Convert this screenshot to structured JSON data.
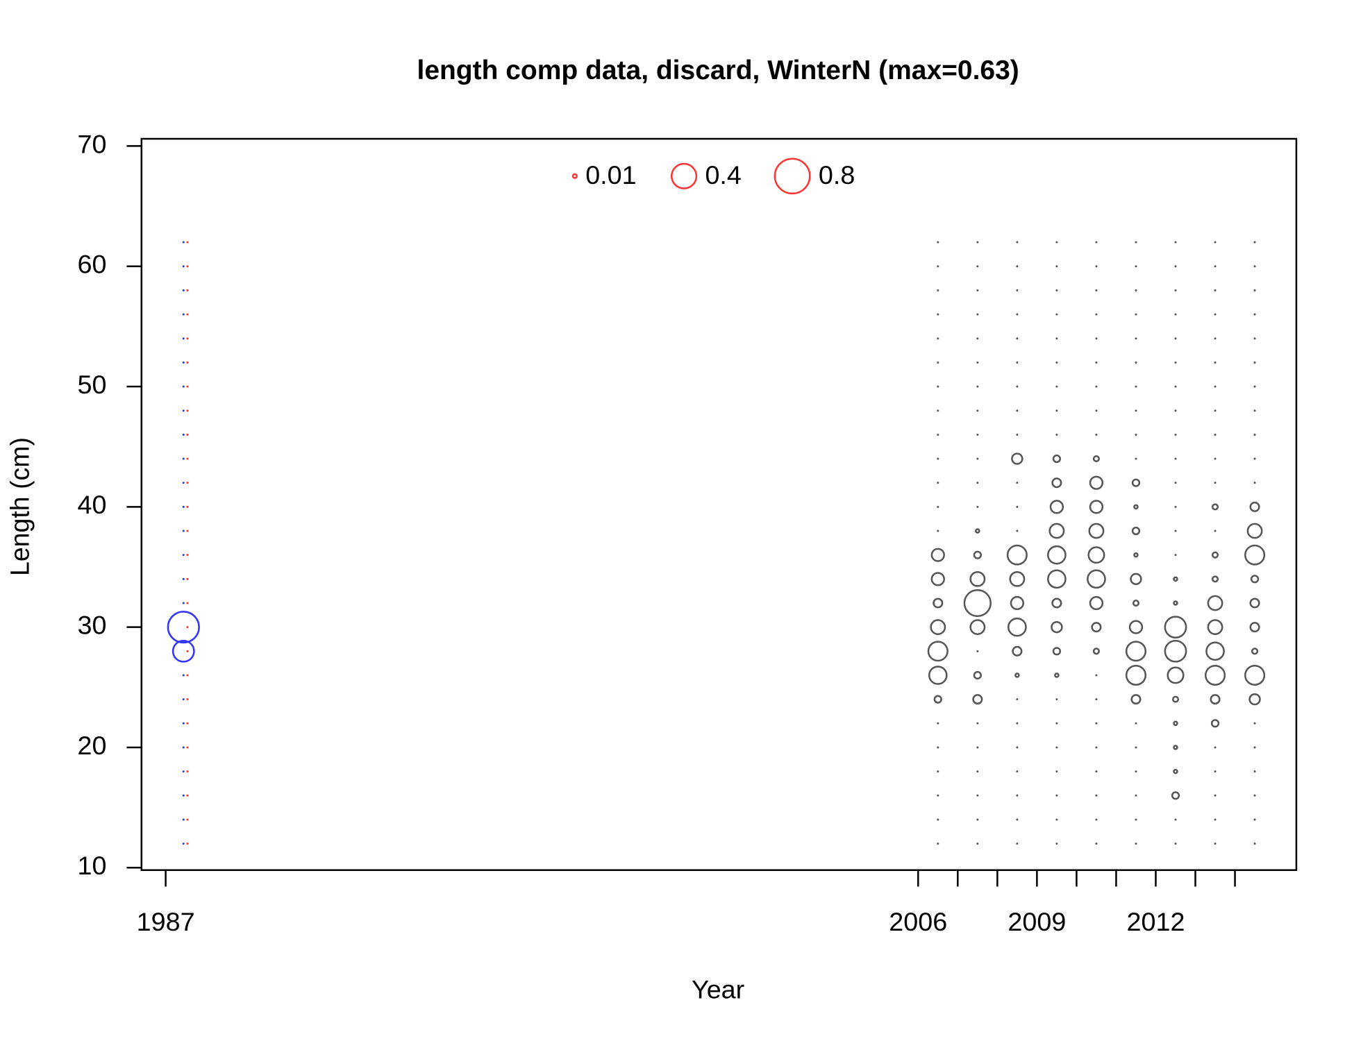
{
  "chart_data": {
    "type": "bubble",
    "title": "length comp data, discard, WinterN (max=0.63)",
    "x_label": "Year",
    "y_label": "Length (cm)",
    "xlim": [
      1986.39,
      2015.55
    ],
    "ylim": [
      9.8,
      70.6
    ],
    "xticks": [
      1987,
      2006,
      {
        "value": 2007,
        "label": null
      },
      {
        "value": 2008,
        "label": null
      },
      2009,
      {
        "value": 2010,
        "label": null
      },
      {
        "value": 2011,
        "label": null
      },
      2012,
      {
        "value": 2013,
        "label": null
      },
      {
        "value": 2014,
        "label": null
      }
    ],
    "yticks": [
      10,
      20,
      30,
      40,
      50,
      60,
      70
    ],
    "size_legend": {
      "values": [
        0.01,
        0.4,
        0.8
      ],
      "color": "#ff3333"
    },
    "y": [
      12,
      14,
      16,
      18,
      20,
      22,
      24,
      26,
      28,
      30,
      32,
      34,
      36,
      38,
      40,
      42,
      44,
      46,
      48,
      50,
      52,
      54,
      56,
      58,
      60,
      62
    ],
    "columns": [
      {
        "x": 1987.45,
        "color": "#3333ff",
        "values": [
          0,
          0,
          0,
          0,
          0,
          0,
          0,
          0,
          0.29,
          0.63,
          0,
          0,
          0,
          0,
          0,
          0,
          0,
          0,
          0,
          0,
          0,
          0,
          0,
          0,
          0,
          0
        ]
      },
      {
        "x": 1987.55,
        "color": "#ff3333",
        "values": [
          0,
          0,
          0,
          0,
          0,
          0,
          0,
          0,
          0,
          0,
          0,
          0,
          0,
          0,
          0,
          0,
          0,
          0,
          0,
          0,
          0,
          0,
          0,
          0,
          0,
          0
        ]
      },
      {
        "x": 2006.5,
        "color": "#555555",
        "values": [
          0,
          0,
          0,
          0,
          0,
          0,
          0.03,
          0.2,
          0.24,
          0.13,
          0.05,
          0.1,
          0.1,
          0,
          0,
          0,
          0,
          0,
          0,
          0,
          0,
          0,
          0,
          0,
          0,
          0
        ]
      },
      {
        "x": 2007.5,
        "color": "#555555",
        "values": [
          0,
          0,
          0,
          0,
          0,
          0,
          0.05,
          0.03,
          0,
          0.13,
          0.45,
          0.13,
          0.03,
          0.008,
          0,
          0,
          0,
          0,
          0,
          0,
          0,
          0,
          0,
          0,
          0,
          0
        ]
      },
      {
        "x": 2008.5,
        "color": "#555555",
        "values": [
          0,
          0,
          0,
          0,
          0,
          0,
          0,
          0.008,
          0.05,
          0.2,
          0.1,
          0.13,
          0.24,
          0,
          0,
          0,
          0.07,
          0,
          0,
          0,
          0,
          0,
          0,
          0,
          0,
          0
        ]
      },
      {
        "x": 2009.5,
        "color": "#555555",
        "values": [
          0,
          0,
          0,
          0,
          0,
          0,
          0,
          0.008,
          0.03,
          0.07,
          0.05,
          0.2,
          0.2,
          0.13,
          0.1,
          0.05,
          0.03,
          0,
          0,
          0,
          0,
          0,
          0,
          0,
          0,
          0
        ]
      },
      {
        "x": 2010.5,
        "color": "#555555",
        "values": [
          0,
          0,
          0,
          0,
          0,
          0,
          0,
          0,
          0.018,
          0.05,
          0.1,
          0.2,
          0.16,
          0.13,
          0.1,
          0.1,
          0.018,
          0,
          0,
          0,
          0,
          0,
          0,
          0,
          0,
          0
        ]
      },
      {
        "x": 2011.5,
        "color": "#555555",
        "values": [
          0,
          0,
          0,
          0,
          0,
          0,
          0.05,
          0.24,
          0.24,
          0.1,
          0.018,
          0.07,
          0.008,
          0.03,
          0.008,
          0.03,
          0,
          0,
          0,
          0,
          0,
          0,
          0,
          0,
          0,
          0
        ]
      },
      {
        "x": 2012.5,
        "color": "#555555",
        "values": [
          0,
          0,
          0.03,
          0.008,
          0.008,
          0.008,
          0.018,
          0.16,
          0.29,
          0.29,
          0.008,
          0.008,
          0,
          0,
          0,
          0,
          0,
          0,
          0,
          0,
          0,
          0,
          0,
          0,
          0,
          0
        ]
      },
      {
        "x": 2013.5,
        "color": "#555555",
        "values": [
          0,
          0,
          0,
          0,
          0,
          0.03,
          0.05,
          0.24,
          0.2,
          0.13,
          0.13,
          0.018,
          0.018,
          0,
          0.018,
          0,
          0,
          0,
          0,
          0,
          0,
          0,
          0,
          0,
          0,
          0
        ]
      },
      {
        "x": 2014.5,
        "color": "#555555",
        "values": [
          0,
          0,
          0,
          0,
          0,
          0,
          0.07,
          0.24,
          0.018,
          0.05,
          0.05,
          0.03,
          0.24,
          0.13,
          0.05,
          0,
          0,
          0,
          0,
          0,
          0,
          0,
          0,
          0,
          0,
          0
        ]
      }
    ]
  }
}
